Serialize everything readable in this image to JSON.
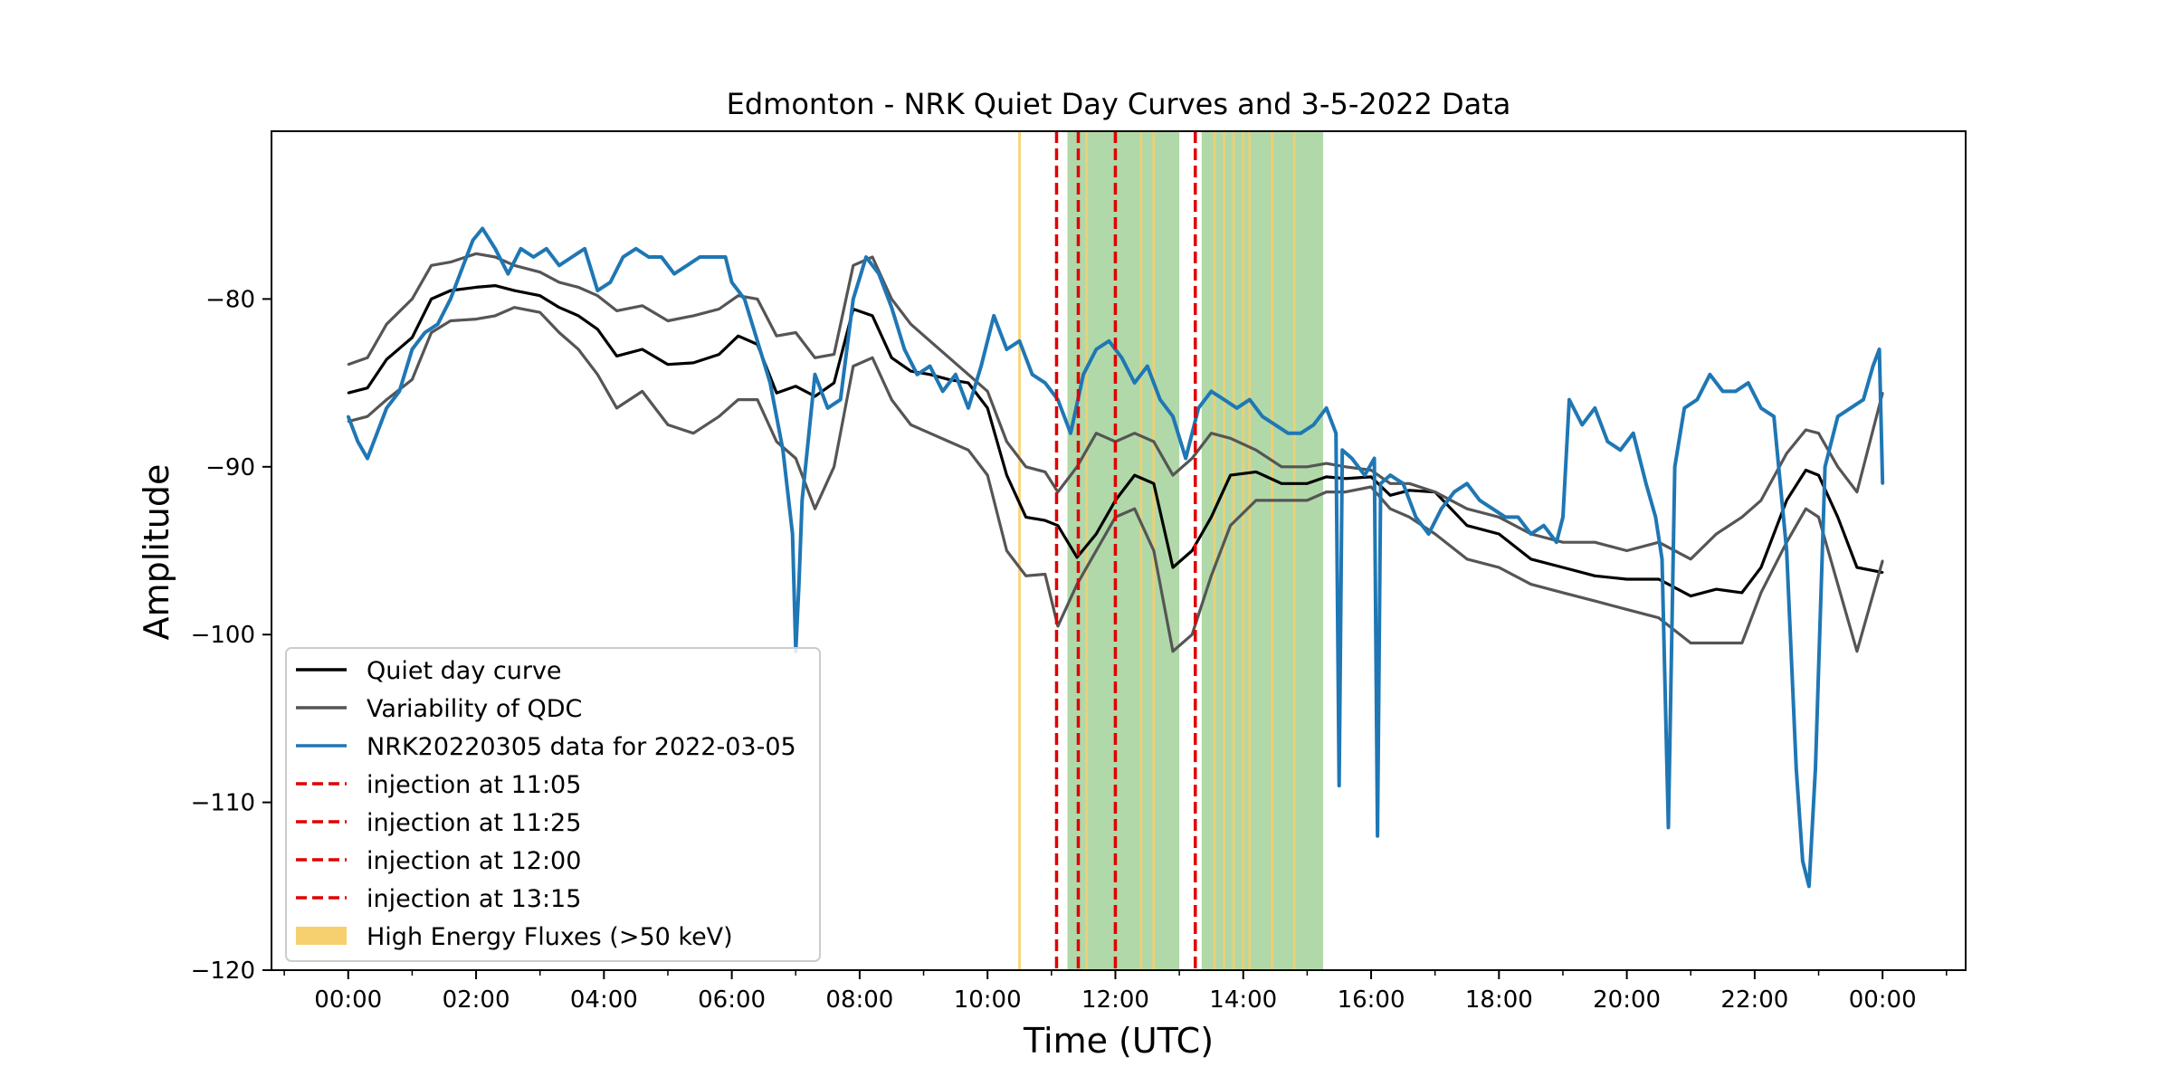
{
  "chart_data": {
    "type": "line",
    "title": "Edmonton - NRK Quiet Day Curves and 3-5-2022 Data",
    "xlabel": "Time (UTC)",
    "ylabel": "Amplitude",
    "xlim": [
      -1.2,
      25.3
    ],
    "ylim": [
      -120,
      -70
    ],
    "x_ticks": [
      {
        "hour": 0,
        "label": "00:00"
      },
      {
        "hour": 2,
        "label": "02:00"
      },
      {
        "hour": 4,
        "label": "04:00"
      },
      {
        "hour": 6,
        "label": "06:00"
      },
      {
        "hour": 8,
        "label": "08:00"
      },
      {
        "hour": 10,
        "label": "10:00"
      },
      {
        "hour": 12,
        "label": "12:00"
      },
      {
        "hour": 14,
        "label": "14:00"
      },
      {
        "hour": 16,
        "label": "16:00"
      },
      {
        "hour": 18,
        "label": "18:00"
      },
      {
        "hour": 20,
        "label": "20:00"
      },
      {
        "hour": 22,
        "label": "22:00"
      },
      {
        "hour": 24,
        "label": "00:00"
      }
    ],
    "y_ticks": [
      {
        "value": -80,
        "label": "−80"
      },
      {
        "value": -90,
        "label": "−90"
      },
      {
        "value": -100,
        "label": "−100"
      },
      {
        "value": -110,
        "label": "−110"
      },
      {
        "value": -120,
        "label": "−120"
      }
    ],
    "grid": false,
    "legend_position": "lower-left",
    "legend": [
      {
        "label": "Quiet day curve",
        "kind": "line",
        "color": "#000000"
      },
      {
        "label": "Variability of QDC",
        "kind": "line",
        "color": "#555555"
      },
      {
        "label": "NRK20220305 data for 2022-03-05",
        "kind": "line",
        "color": "#1f77b4"
      },
      {
        "label": "injection at 11:05",
        "kind": "dashed",
        "color": "#e00000"
      },
      {
        "label": "injection at 11:25",
        "kind": "dashed",
        "color": "#e00000"
      },
      {
        "label": "injection at 12:00",
        "kind": "dashed",
        "color": "#e00000"
      },
      {
        "label": "injection at 13:15",
        "kind": "dashed",
        "color": "#e00000"
      },
      {
        "label": "High Energy Fluxes (>50 keV)",
        "kind": "patch",
        "color": "#f6cf6e"
      }
    ],
    "injections": [
      11.08,
      11.42,
      12.0,
      13.25
    ],
    "green_spans": [
      [
        11.25,
        13.0
      ],
      [
        13.35,
        15.25
      ]
    ],
    "high_energy_flux_lines": [
      10.5,
      11.55,
      12.4,
      12.6,
      13.55,
      13.7,
      13.85,
      14.0,
      14.1,
      14.45,
      14.8
    ],
    "series": [
      {
        "name": "Quiet day curve",
        "color": "#000000",
        "x": [
          0,
          0.3,
          0.6,
          1.0,
          1.3,
          1.6,
          2.0,
          2.3,
          2.6,
          3.0,
          3.3,
          3.6,
          3.9,
          4.2,
          4.6,
          5.0,
          5.4,
          5.8,
          6.1,
          6.4,
          6.7,
          7.0,
          7.3,
          7.6,
          7.9,
          8.2,
          8.5,
          8.8,
          9.1,
          9.4,
          9.7,
          10.0,
          10.3,
          10.6,
          10.9,
          11.1,
          11.4,
          11.7,
          12.0,
          12.3,
          12.6,
          12.9,
          13.2,
          13.5,
          13.8,
          14.2,
          14.6,
          15.0,
          15.3,
          15.6,
          16.0,
          16.3,
          16.6,
          17.0,
          17.5,
          18.0,
          18.5,
          19.0,
          19.5,
          20.0,
          20.5,
          21.0,
          21.4,
          21.8,
          22.1,
          22.5,
          22.8,
          23.0,
          23.3,
          23.6,
          24.0
        ],
        "values": [
          -85.6,
          -85.3,
          -83.6,
          -82.3,
          -80.0,
          -79.5,
          -79.3,
          -79.2,
          -79.5,
          -79.8,
          -80.5,
          -81.0,
          -81.8,
          -83.4,
          -83.0,
          -83.9,
          -83.8,
          -83.3,
          -82.2,
          -82.7,
          -85.6,
          -85.2,
          -85.8,
          -85.0,
          -80.6,
          -81.0,
          -83.5,
          -84.3,
          -84.5,
          -84.8,
          -85.0,
          -86.5,
          -90.5,
          -93.0,
          -93.2,
          -93.5,
          -95.4,
          -94.0,
          -92.0,
          -90.5,
          -91.0,
          -96.0,
          -95.0,
          -93.0,
          -90.5,
          -90.3,
          -91.0,
          -91.0,
          -90.6,
          -90.7,
          -90.6,
          -91.7,
          -91.4,
          -91.5,
          -93.5,
          -94.0,
          -95.5,
          -96.0,
          -96.5,
          -96.7,
          -96.7,
          -97.7,
          -97.3,
          -97.5,
          -96.0,
          -92.0,
          -90.2,
          -90.5,
          -93.0,
          -96.0,
          -96.3
        ]
      },
      {
        "name": "Variability of QDC (upper)",
        "color": "#555555",
        "x": [
          0,
          0.3,
          0.6,
          1.0,
          1.3,
          1.6,
          2.0,
          2.3,
          2.6,
          3.0,
          3.3,
          3.6,
          3.9,
          4.2,
          4.6,
          5.0,
          5.4,
          5.8,
          6.1,
          6.4,
          6.7,
          7.0,
          7.3,
          7.6,
          7.9,
          8.2,
          8.5,
          8.8,
          9.1,
          9.4,
          9.7,
          10.0,
          10.3,
          10.6,
          10.9,
          11.1,
          11.4,
          11.7,
          12.0,
          12.3,
          12.6,
          12.9,
          13.2,
          13.5,
          13.8,
          14.2,
          14.6,
          15.0,
          15.3,
          15.6,
          16.0,
          16.3,
          16.6,
          17.0,
          17.5,
          18.0,
          18.5,
          19.0,
          19.5,
          20.0,
          20.5,
          21.0,
          21.4,
          21.8,
          22.1,
          22.5,
          22.8,
          23.0,
          23.3,
          23.6,
          24.0
        ],
        "values": [
          -83.9,
          -83.5,
          -81.5,
          -80.0,
          -78.0,
          -77.8,
          -77.3,
          -77.5,
          -78.0,
          -78.4,
          -79.0,
          -79.3,
          -79.8,
          -80.7,
          -80.4,
          -81.3,
          -81.0,
          -80.6,
          -79.8,
          -80.0,
          -82.2,
          -82.0,
          -83.5,
          -83.3,
          -78.0,
          -77.5,
          -80.0,
          -81.5,
          -82.5,
          -83.5,
          -84.5,
          -85.5,
          -88.5,
          -90.0,
          -90.3,
          -91.5,
          -90.0,
          -88.0,
          -88.5,
          -88.0,
          -88.5,
          -90.5,
          -89.5,
          -88.0,
          -88.3,
          -89.0,
          -90.0,
          -90.0,
          -89.8,
          -90.0,
          -90.2,
          -91.0,
          -91.0,
          -91.5,
          -92.5,
          -93.0,
          -94.0,
          -94.5,
          -94.5,
          -95.0,
          -94.5,
          -95.5,
          -94.0,
          -93.0,
          -92.0,
          -89.2,
          -87.8,
          -88.0,
          -90.0,
          -91.5,
          -85.6
        ]
      },
      {
        "name": "Variability of QDC (lower)",
        "color": "#555555",
        "x": [
          0,
          0.3,
          0.6,
          1.0,
          1.3,
          1.6,
          2.0,
          2.3,
          2.6,
          3.0,
          3.3,
          3.6,
          3.9,
          4.2,
          4.6,
          5.0,
          5.4,
          5.8,
          6.1,
          6.4,
          6.7,
          7.0,
          7.3,
          7.6,
          7.9,
          8.2,
          8.5,
          8.8,
          9.1,
          9.4,
          9.7,
          10.0,
          10.3,
          10.6,
          10.9,
          11.1,
          11.4,
          11.7,
          12.0,
          12.3,
          12.6,
          12.9,
          13.2,
          13.5,
          13.8,
          14.2,
          14.6,
          15.0,
          15.3,
          15.6,
          16.0,
          16.3,
          16.6,
          17.0,
          17.5,
          18.0,
          18.5,
          19.0,
          19.5,
          20.0,
          20.5,
          21.0,
          21.4,
          21.8,
          22.1,
          22.5,
          22.8,
          23.0,
          23.3,
          23.6,
          24.0
        ],
        "values": [
          -87.3,
          -87.0,
          -86.0,
          -84.8,
          -82.0,
          -81.3,
          -81.2,
          -81.0,
          -80.5,
          -80.8,
          -82.0,
          -83.0,
          -84.5,
          -86.5,
          -85.5,
          -87.5,
          -88.0,
          -87.0,
          -86.0,
          -86.0,
          -88.5,
          -89.5,
          -92.5,
          -90.0,
          -84.0,
          -83.5,
          -86.0,
          -87.5,
          -88.0,
          -88.5,
          -89.0,
          -90.5,
          -95.0,
          -96.5,
          -96.4,
          -99.5,
          -97.0,
          -95.0,
          -93.0,
          -92.5,
          -95.0,
          -101.0,
          -100.0,
          -96.5,
          -93.5,
          -92.0,
          -92.0,
          -92.0,
          -91.5,
          -91.5,
          -91.2,
          -92.5,
          -93.0,
          -94.0,
          -95.5,
          -96.0,
          -97.0,
          -97.5,
          -98.0,
          -98.5,
          -99.0,
          -100.5,
          -100.5,
          -100.5,
          -97.5,
          -94.5,
          -92.5,
          -93.0,
          -97.0,
          -101.0,
          -95.6
        ]
      },
      {
        "name": "NRK20220305 data for 2022-03-05",
        "color": "#1f77b4",
        "x": [
          0,
          0.15,
          0.3,
          0.45,
          0.6,
          0.8,
          1.0,
          1.2,
          1.4,
          1.6,
          1.8,
          1.95,
          2.1,
          2.3,
          2.5,
          2.7,
          2.9,
          3.1,
          3.3,
          3.5,
          3.7,
          3.9,
          4.1,
          4.3,
          4.5,
          4.7,
          4.9,
          5.1,
          5.3,
          5.5,
          5.7,
          5.9,
          6.0,
          6.2,
          6.4,
          6.6,
          6.8,
          6.95,
          7.0,
          7.05,
          7.1,
          7.3,
          7.5,
          7.7,
          7.9,
          8.1,
          8.3,
          8.5,
          8.7,
          8.9,
          9.1,
          9.3,
          9.5,
          9.7,
          9.9,
          10.1,
          10.3,
          10.5,
          10.7,
          10.9,
          11.1,
          11.3,
          11.5,
          11.7,
          11.9,
          12.1,
          12.3,
          12.5,
          12.7,
          12.9,
          13.1,
          13.3,
          13.5,
          13.7,
          13.9,
          14.1,
          14.3,
          14.5,
          14.7,
          14.9,
          15.1,
          15.3,
          15.45,
          15.5,
          15.55,
          15.7,
          15.9,
          16.05,
          16.1,
          16.15,
          16.3,
          16.5,
          16.7,
          16.9,
          17.1,
          17.3,
          17.5,
          17.7,
          17.9,
          18.1,
          18.3,
          18.5,
          18.7,
          18.9,
          19.0,
          19.1,
          19.3,
          19.5,
          19.7,
          19.9,
          20.1,
          20.3,
          20.45,
          20.55,
          20.65,
          20.75,
          20.9,
          21.1,
          21.3,
          21.5,
          21.7,
          21.9,
          22.1,
          22.3,
          22.5,
          22.65,
          22.75,
          22.85,
          22.95,
          23.1,
          23.3,
          23.5,
          23.7,
          23.85,
          23.95,
          24.0
        ],
        "values": [
          -87.0,
          -88.5,
          -89.5,
          -88.0,
          -86.5,
          -85.5,
          -83.0,
          -82.0,
          -81.5,
          -80.0,
          -78.0,
          -76.5,
          -75.8,
          -77.0,
          -78.5,
          -77.0,
          -77.5,
          -77.0,
          -78.0,
          -77.5,
          -77.0,
          -79.5,
          -79.0,
          -77.5,
          -77.0,
          -77.5,
          -77.5,
          -78.5,
          -78.0,
          -77.5,
          -77.5,
          -77.5,
          -79.0,
          -80.0,
          -82.5,
          -85.0,
          -89.0,
          -94.0,
          -101.0,
          -97.0,
          -92.0,
          -84.5,
          -86.5,
          -86.0,
          -80.0,
          -77.5,
          -78.5,
          -80.5,
          -83.0,
          -84.5,
          -84.0,
          -85.5,
          -84.5,
          -86.5,
          -84.0,
          -81.0,
          -83.0,
          -82.5,
          -84.5,
          -85.0,
          -86.0,
          -88.0,
          -84.5,
          -83.0,
          -82.5,
          -83.5,
          -85.0,
          -84.0,
          -86.0,
          -87.0,
          -89.5,
          -86.5,
          -85.5,
          -86.0,
          -86.5,
          -86.0,
          -87.0,
          -87.5,
          -88.0,
          -88.0,
          -87.5,
          -86.5,
          -88.0,
          -109.0,
          -89.0,
          -89.5,
          -90.5,
          -89.5,
          -112.0,
          -91.0,
          -90.5,
          -91.0,
          -93.0,
          -94.0,
          -92.5,
          -91.5,
          -91.0,
          -92.0,
          -92.5,
          -93.0,
          -93.0,
          -94.0,
          -93.5,
          -94.5,
          -93.0,
          -86.0,
          -87.5,
          -86.5,
          -88.5,
          -89.0,
          -88.0,
          -91.0,
          -93.0,
          -95.5,
          -111.5,
          -90.0,
          -86.5,
          -86.0,
          -84.5,
          -85.5,
          -85.5,
          -85.0,
          -86.5,
          -87.0,
          -95.0,
          -108.0,
          -113.5,
          -115.0,
          -108.0,
          -90.0,
          -87.0,
          -86.5,
          -86.0,
          -84.0,
          -83.0,
          -91.0
        ]
      }
    ]
  }
}
